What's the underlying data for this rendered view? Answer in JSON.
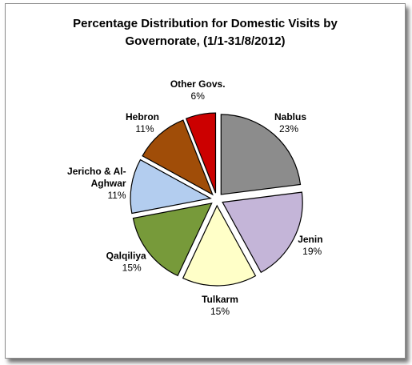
{
  "chart_data": {
    "type": "pie",
    "title_lines": [
      "Percentage Distribution for Domestic Visits by",
      "Governorate, (1/1-31/8/2012)"
    ],
    "slices": [
      {
        "name_lines": [
          "Nablus"
        ],
        "value": 23,
        "label": "23%",
        "color": "#8c8c8c"
      },
      {
        "name_lines": [
          "Jenin"
        ],
        "value": 19,
        "label": "19%",
        "color": "#c4b5d8"
      },
      {
        "name_lines": [
          "Tulkarm"
        ],
        "value": 15,
        "label": "15%",
        "color": "#ffffc8"
      },
      {
        "name_lines": [
          "Qalqiliya"
        ],
        "value": 15,
        "label": "15%",
        "color": "#779a3a"
      },
      {
        "name_lines": [
          "Jericho & Al-",
          "Aghwar"
        ],
        "value": 11,
        "label": "11%",
        "color": "#b3cdef"
      },
      {
        "name_lines": [
          "Hebron"
        ],
        "value": 11,
        "label": "11%",
        "color": "#a04d08"
      },
      {
        "name_lines": [
          "Other Govs."
        ],
        "value": 6,
        "label": "6%",
        "color": "#cc0000"
      }
    ],
    "exploded": true,
    "legend": "none"
  }
}
